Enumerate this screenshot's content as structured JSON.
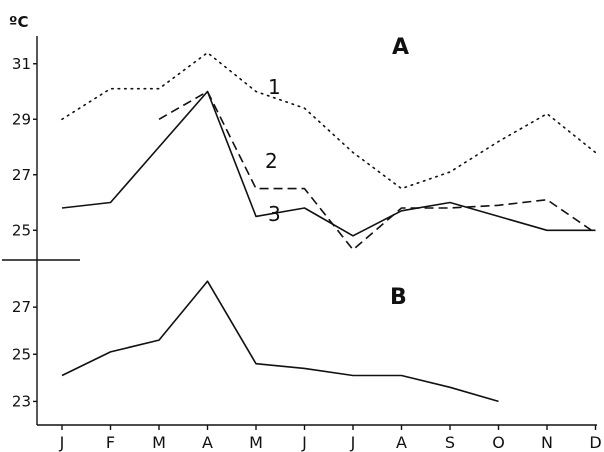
{
  "chart_data": [
    {
      "type": "line",
      "panel_label": "A",
      "unit": "ºC",
      "categories": [
        "J",
        "F",
        "M",
        "A",
        "M",
        "J",
        "J",
        "A",
        "S",
        "O",
        "N",
        "D"
      ],
      "yticks": [
        25,
        27,
        29,
        31
      ],
      "ylim": [
        24.0,
        32.0
      ],
      "grid": false,
      "series": [
        {
          "name": "1",
          "style": "dotted",
          "values": [
            29.0,
            30.1,
            30.1,
            31.4,
            30.0,
            29.4,
            27.8,
            26.5,
            27.1,
            28.2,
            29.2,
            27.8
          ]
        },
        {
          "name": "2",
          "style": "dashed",
          "values": [
            null,
            null,
            29.0,
            30.0,
            26.5,
            26.5,
            24.3,
            25.8,
            25.8,
            25.9,
            26.1,
            24.9
          ]
        },
        {
          "name": "3",
          "style": "solid",
          "values": [
            25.8,
            26.0,
            28.0,
            30.0,
            25.5,
            25.8,
            24.8,
            25.7,
            26.0,
            25.5,
            25.0,
            25.0
          ]
        }
      ]
    },
    {
      "type": "line",
      "panel_label": "B",
      "categories": [
        "J",
        "F",
        "M",
        "A",
        "M",
        "J",
        "J",
        "A",
        "S",
        "O",
        "N",
        "D"
      ],
      "yticks": [
        23,
        25,
        27
      ],
      "ylim": [
        22.0,
        29.0
      ],
      "grid": false,
      "series": [
        {
          "style": "solid",
          "values": [
            24.1,
            25.1,
            25.6,
            28.1,
            24.6,
            24.4,
            24.1,
            24.1,
            23.6,
            23.0,
            null,
            null
          ]
        }
      ]
    }
  ]
}
